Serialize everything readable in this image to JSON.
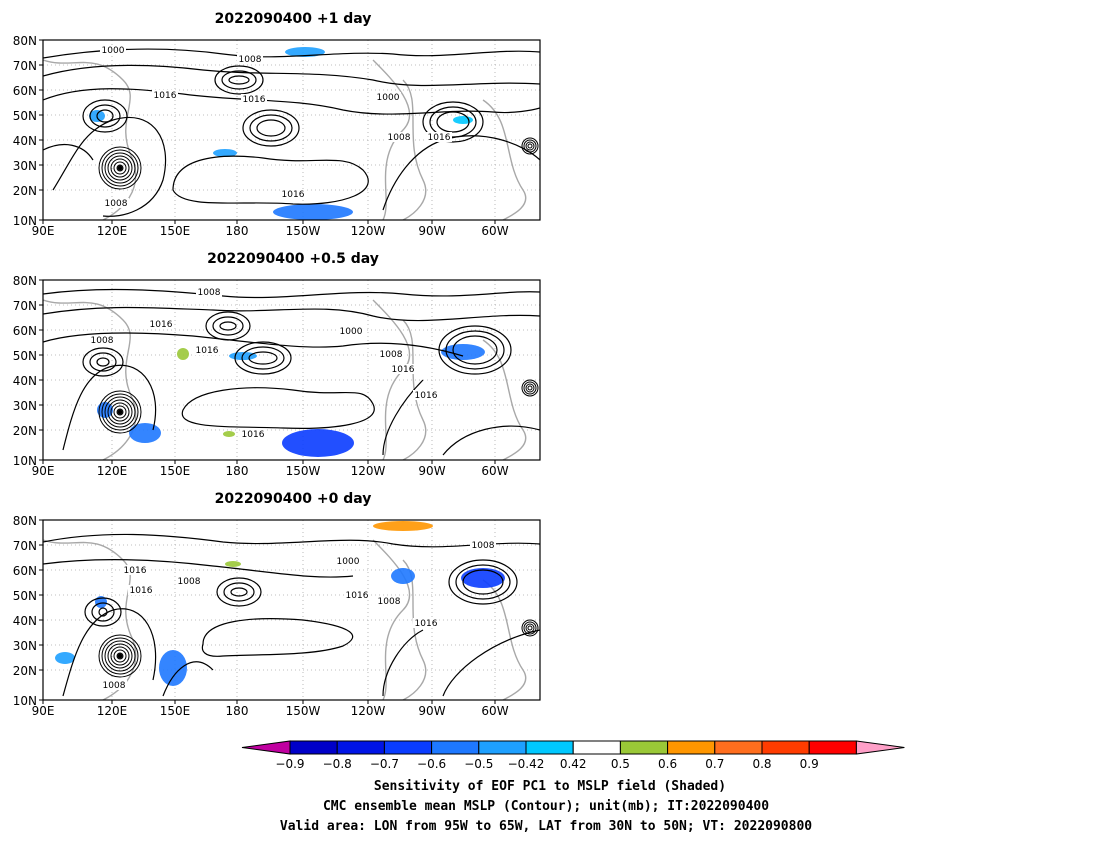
{
  "panels": [
    {
      "title": "2022090400  +1 day",
      "lat_labels": [
        "80N",
        "70N",
        "60N",
        "50N",
        "40N",
        "30N",
        "20N",
        "10N"
      ],
      "lon_labels": [
        "90E",
        "120E",
        "150E",
        "180",
        "150W",
        "120W",
        "90W",
        "60W"
      ],
      "contour_labels": [
        "1000",
        "1008",
        "1016",
        "1016",
        "1000",
        "1008",
        "1016",
        "1016",
        "1008"
      ]
    },
    {
      "title": "2022090400  +0.5 day",
      "lat_labels": [
        "80N",
        "70N",
        "60N",
        "50N",
        "40N",
        "30N",
        "20N",
        "10N"
      ],
      "lon_labels": [
        "90E",
        "120E",
        "150E",
        "180",
        "150W",
        "120W",
        "90W",
        "60W"
      ],
      "contour_labels": [
        "1008",
        "1016",
        "1008",
        "1016",
        "1000",
        "1008",
        "1016",
        "1016",
        "1016"
      ]
    },
    {
      "title": "2022090400  +0 day",
      "lat_labels": [
        "80N",
        "70N",
        "60N",
        "50N",
        "40N",
        "30N",
        "20N",
        "10N"
      ],
      "lon_labels": [
        "90E",
        "120E",
        "150E",
        "180",
        "150W",
        "120W",
        "90W",
        "60W"
      ],
      "contour_labels": [
        "1016",
        "1008",
        "1016",
        "1000",
        "1016",
        "1008",
        "1016",
        "1008",
        "1008"
      ]
    }
  ],
  "colorbar": {
    "labels": [
      "−0.9",
      "−0.8",
      "−0.7",
      "−0.6",
      "−0.5",
      "−0.42",
      "0.42",
      "0.5",
      "0.6",
      "0.7",
      "0.8",
      "0.9"
    ],
    "colors": [
      "#c000a0",
      "#0000c8",
      "#0014e6",
      "#0a3cff",
      "#1e78ff",
      "#1ea0ff",
      "#00c8ff",
      "#ffffff",
      "#9ac837",
      "#ff9600",
      "#ff6e1e",
      "#ff3c00",
      "#ff0000",
      "#ffa0c8"
    ]
  },
  "caption": {
    "line1": "Sensitivity of EOF PC1 to MSLP field (Shaded)",
    "line2": "CMC ensemble mean MSLP (Contour); unit(mb); IT:2022090400",
    "line3": "Valid area: LON from 95W to 65W, LAT from 30N to 50N; VT: 2022090800"
  }
}
